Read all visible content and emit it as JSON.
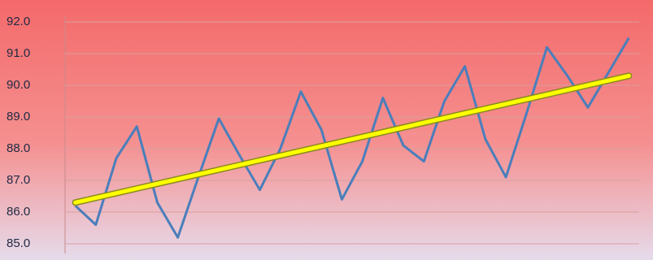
{
  "chart_data": {
    "type": "line",
    "categories": [
      null,
      null,
      null,
      null,
      null,
      null,
      null,
      null,
      null,
      null,
      null,
      null,
      null,
      null,
      null,
      null,
      null,
      null,
      null,
      null,
      null,
      null,
      null,
      null,
      null,
      null,
      null,
      null
    ],
    "series": [
      {
        "color": "#4a7ebb",
        "values": [
          86.2,
          85.6,
          87.7,
          88.7,
          86.3,
          85.2,
          87.1,
          88.95,
          87.8,
          86.7,
          88.0,
          89.8,
          88.6,
          86.4,
          87.6,
          89.6,
          88.1,
          87.6,
          89.5,
          90.6,
          88.3,
          87.1,
          89.1,
          91.2,
          90.3,
          89.3,
          90.4,
          91.5
        ]
      }
    ],
    "trend": {
      "color": "#ffff00",
      "values": [
        86.3,
        90.3
      ]
    },
    "ylim": [
      85,
      92
    ],
    "yticks": [
      {
        "value": 85,
        "label": "85.0"
      },
      {
        "value": 86,
        "label": "86.0"
      },
      {
        "value": 87,
        "label": "87.0"
      },
      {
        "value": 88,
        "label": "88.0"
      },
      {
        "value": 89,
        "label": "89.0"
      },
      {
        "value": 90,
        "label": "90.0"
      },
      {
        "value": 91,
        "label": "91.0"
      },
      {
        "value": 92,
        "label": "92.0"
      }
    ],
    "grid": true
  }
}
